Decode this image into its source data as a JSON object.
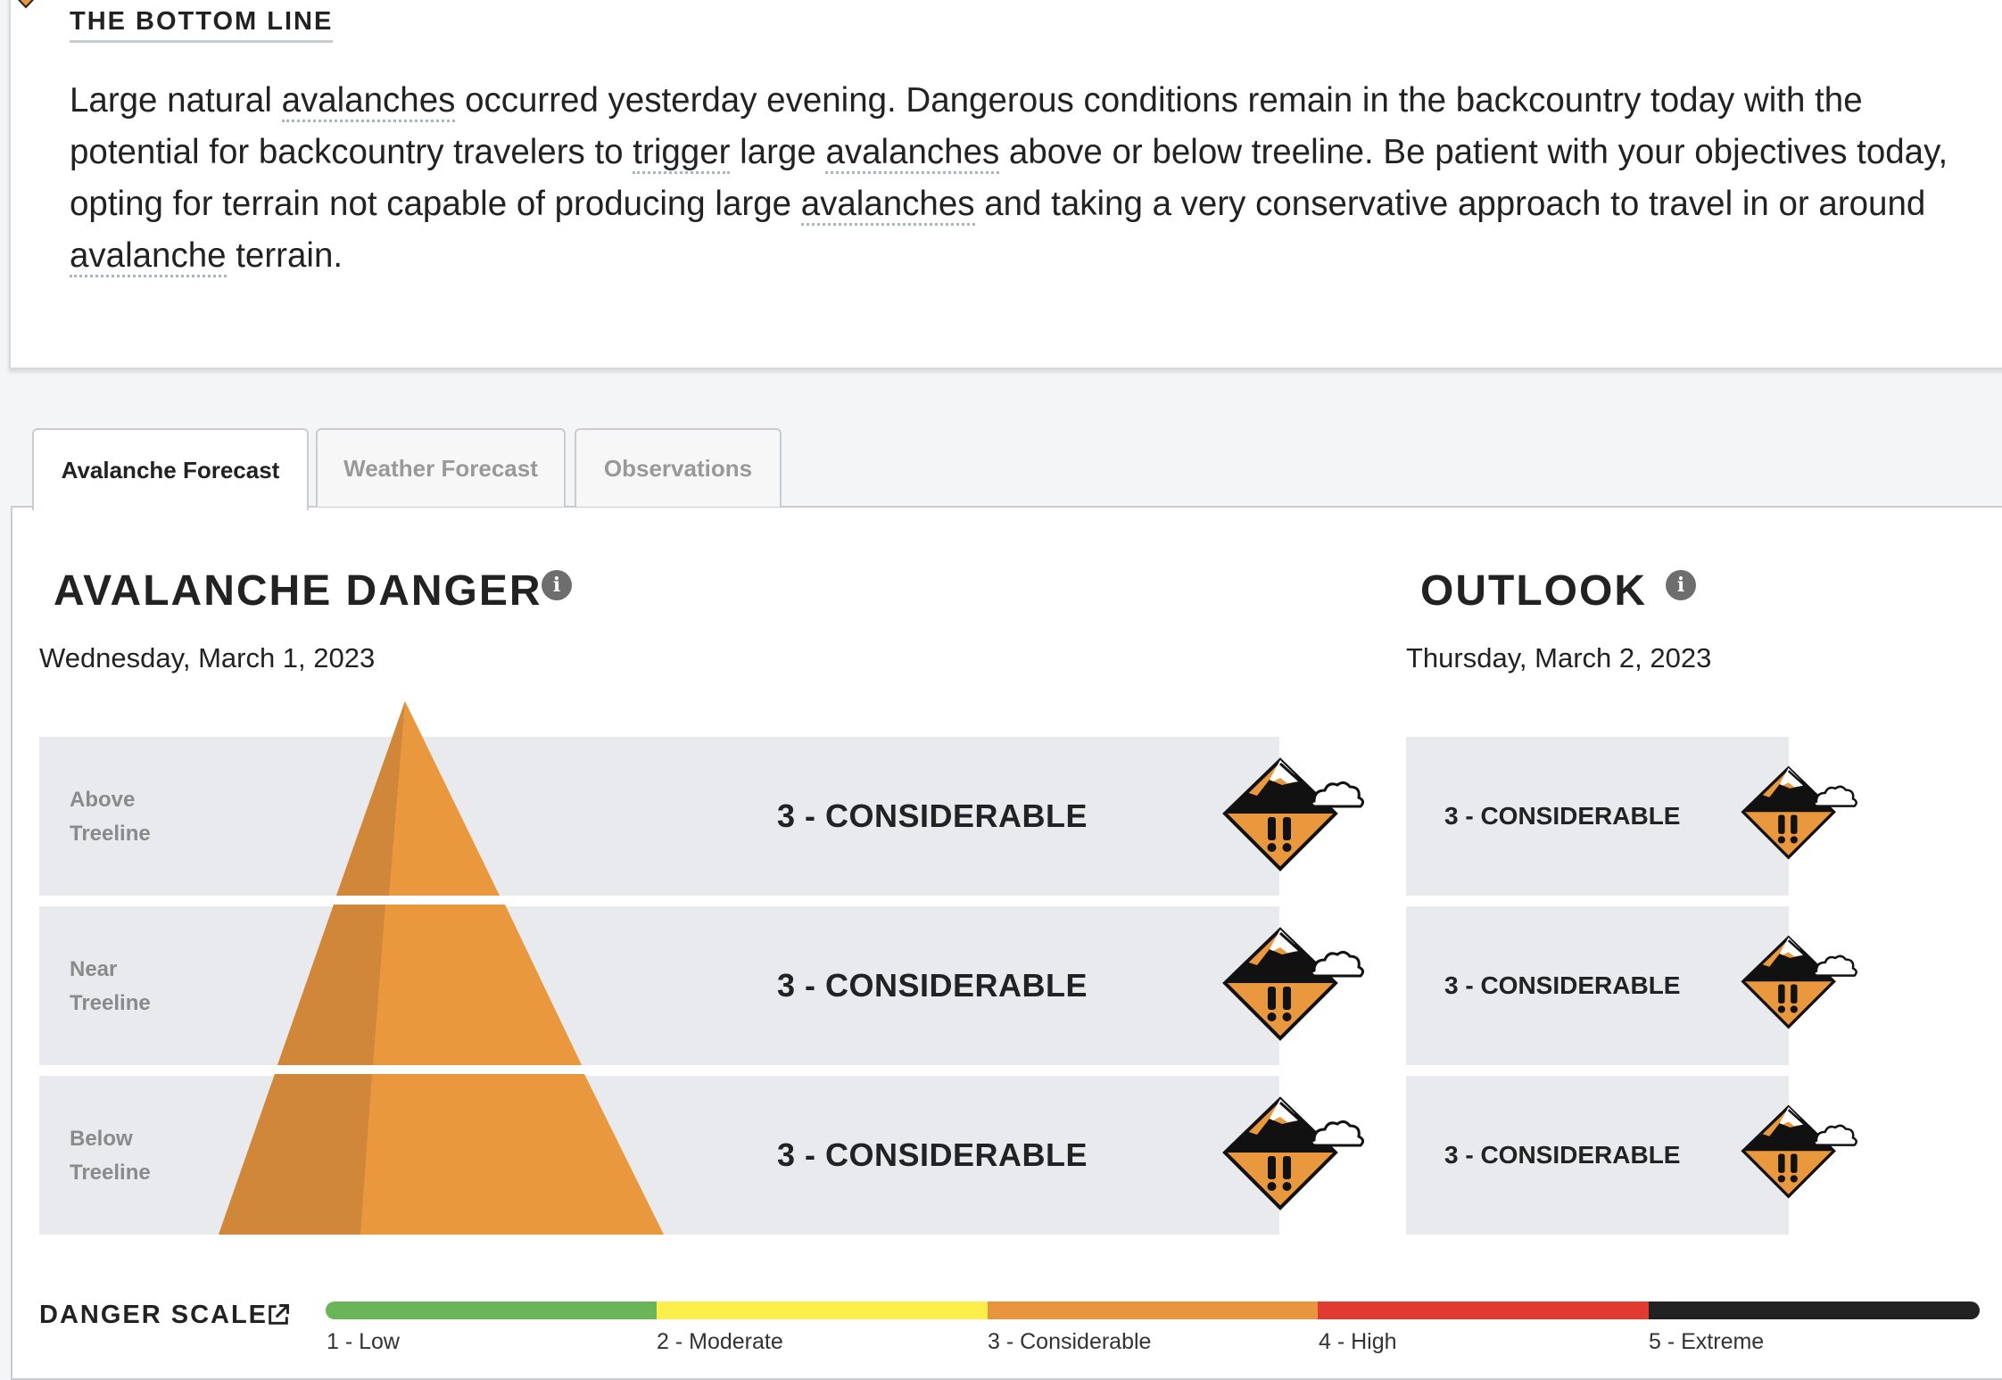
{
  "bottom_line": {
    "title": "THE BOTTOM LINE",
    "text_parts": [
      "Large natural ",
      "avalanches",
      " occurred yesterday evening. Dangerous conditions remain in the backcountry today with the potential for backcountry travelers to ",
      "trigger",
      " large ",
      "avalanches",
      " above or below treeline. Be patient with your objectives today, opting for terrain not capable of producing large ",
      "avalanches",
      " and taking a very conservative approach to travel in or around ",
      "avalanche",
      " terrain."
    ]
  },
  "tabs": [
    {
      "label": "Avalanche Forecast",
      "active": true
    },
    {
      "label": "Weather Forecast",
      "active": false
    },
    {
      "label": "Observations",
      "active": false
    }
  ],
  "danger": {
    "title": "AVALANCHE DANGER",
    "date": "Wednesday, March 1, 2023",
    "rows": [
      {
        "label_1": "Above",
        "label_2": "Treeline",
        "rating": "3 - CONSIDERABLE",
        "level": 3
      },
      {
        "label_1": "Near",
        "label_2": "Treeline",
        "rating": "3 - CONSIDERABLE",
        "level": 3
      },
      {
        "label_1": "Below",
        "label_2": "Treeline",
        "rating": "3 - CONSIDERABLE",
        "level": 3
      }
    ]
  },
  "outlook": {
    "title": "OUTLOOK",
    "date": "Thursday, March 2, 2023",
    "rows": [
      {
        "rating": "3 - CONSIDERABLE",
        "level": 3
      },
      {
        "rating": "3 - CONSIDERABLE",
        "level": 3
      },
      {
        "rating": "3 - CONSIDERABLE",
        "level": 3
      }
    ]
  },
  "danger_scale": {
    "label": "DANGER SCALE",
    "levels": [
      {
        "label": "1 - Low",
        "color": "#6ab557"
      },
      {
        "label": "2 - Moderate",
        "color": "#fcef4c"
      },
      {
        "label": "3 - Considerable",
        "color": "#e8953d"
      },
      {
        "label": "4 - High",
        "color": "#e13a31"
      },
      {
        "label": "5 - Extreme",
        "color": "#222222"
      }
    ]
  },
  "colors": {
    "considerable": "#ea983e",
    "considerable_dark": "#d1873a",
    "band_bg": "#e8eaed"
  },
  "icons": {
    "rating_icon": "considerable-danger-icon",
    "info": "info-icon",
    "external": "external-link-icon"
  }
}
